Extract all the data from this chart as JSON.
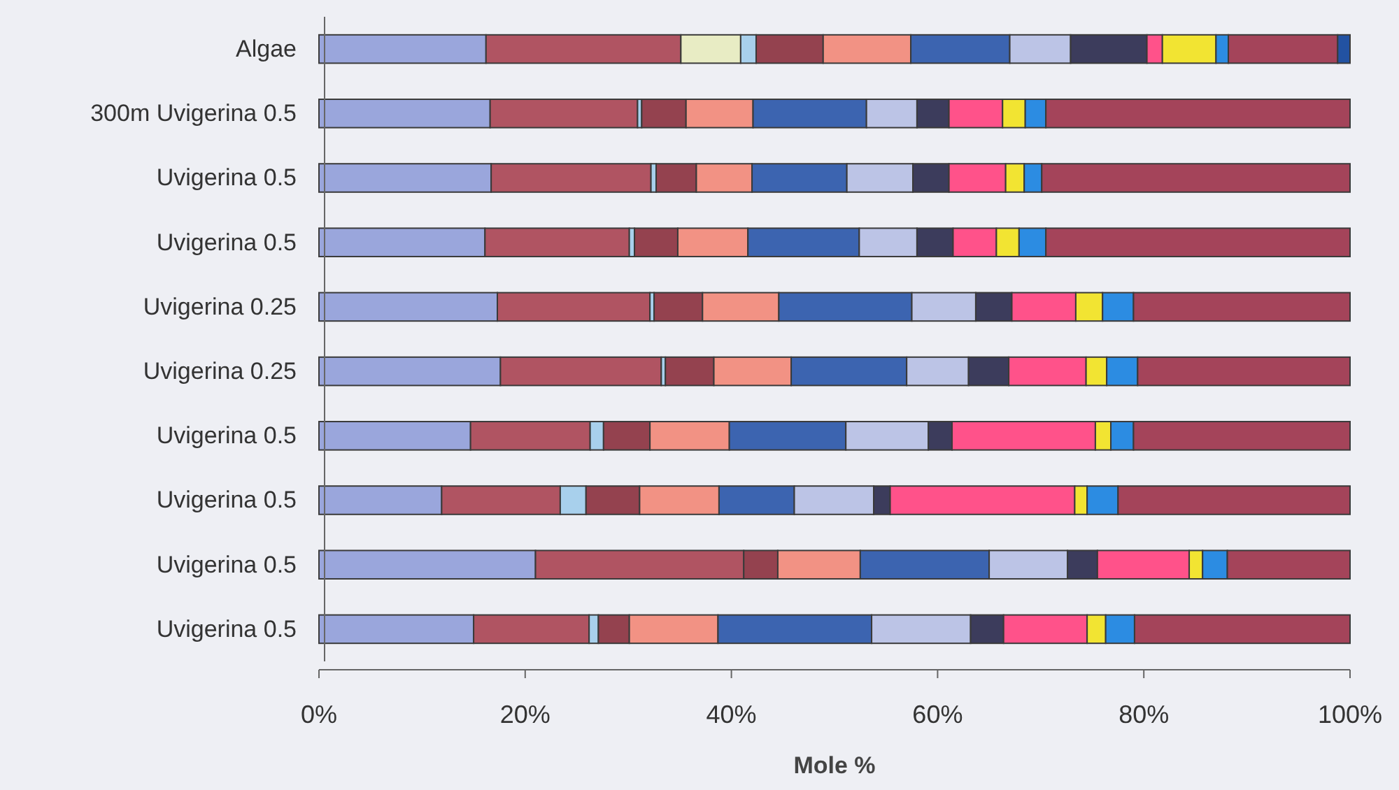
{
  "chart_data": {
    "type": "bar",
    "orientation": "horizontal",
    "stacked": true,
    "xlabel": "Mole %",
    "categories": [
      "Algae",
      "300m Uvigerina 0.5",
      "Uvigerina 0.5",
      "Uvigerina 0.5",
      "Uvigerina 0.25",
      "Uvigerina 0.25",
      "Uvigerina 0.5",
      "Uvigerina 0.5",
      "Uvigerina 0.5",
      "Uvigerina 0.5"
    ],
    "xlim": [
      0,
      100
    ],
    "xticks": [
      {
        "value": 0,
        "label": "0%"
      },
      {
        "value": 20,
        "label": "20%"
      },
      {
        "value": 40,
        "label": "40%"
      },
      {
        "value": 60,
        "label": "60%"
      },
      {
        "value": 80,
        "label": "80%"
      },
      {
        "value": 100,
        "label": "100%"
      }
    ],
    "series": [
      {
        "color": "#9aa6dc",
        "values": [
          16.2,
          16.6,
          16.7,
          16.1,
          17.3,
          17.6,
          14.7,
          11.9,
          21.0,
          15.0
        ]
      },
      {
        "color": "#b05462",
        "values": [
          18.9,
          14.3,
          15.5,
          14.0,
          14.8,
          15.6,
          11.6,
          11.5,
          20.2,
          11.2
        ]
      },
      {
        "color": "#e8ecc4",
        "values": [
          5.8,
          0,
          0,
          0,
          0,
          0,
          0,
          0,
          0,
          0
        ]
      },
      {
        "color": "#a8d0ec",
        "values": [
          1.5,
          0.4,
          0.5,
          0.5,
          0.4,
          0.4,
          1.3,
          2.5,
          0,
          0.9
        ]
      },
      {
        "color": "#94424f",
        "values": [
          6.5,
          4.3,
          3.9,
          4.2,
          4.7,
          4.7,
          4.5,
          5.2,
          3.3,
          3.0
        ]
      },
      {
        "color": "#f29284",
        "values": [
          8.5,
          6.5,
          5.4,
          6.8,
          7.4,
          7.5,
          7.7,
          7.7,
          8.0,
          8.6
        ]
      },
      {
        "color": "#3c64b0",
        "values": [
          9.6,
          11.0,
          9.2,
          10.8,
          12.9,
          11.2,
          11.3,
          7.3,
          12.5,
          14.9
        ]
      },
      {
        "color": "#bcc4e6",
        "values": [
          5.9,
          4.9,
          6.4,
          5.6,
          6.2,
          6.0,
          8.0,
          7.7,
          7.6,
          9.6
        ]
      },
      {
        "color": "#3c3c5c",
        "values": [
          7.4,
          3.1,
          3.5,
          3.5,
          3.5,
          3.9,
          2.3,
          1.6,
          2.9,
          3.2
        ]
      },
      {
        "color": "#ff528a",
        "values": [
          1.5,
          5.2,
          5.5,
          4.2,
          6.2,
          7.5,
          13.9,
          17.9,
          8.9,
          8.1
        ]
      },
      {
        "color": "#f2e432",
        "values": [
          5.2,
          2.2,
          1.8,
          2.2,
          2.6,
          2.0,
          1.5,
          1.2,
          1.3,
          1.8
        ]
      },
      {
        "color": "#2c8ce2",
        "values": [
          1.2,
          2.0,
          1.7,
          2.6,
          3.0,
          3.0,
          2.2,
          3.0,
          2.4,
          2.8
        ]
      },
      {
        "color": "#a4445a",
        "values": [
          10.6,
          29.5,
          29.9,
          29.5,
          21.0,
          20.6,
          21.0,
          22.5,
          11.9,
          20.9
        ]
      },
      {
        "color": "#2252a2",
        "values": [
          1.2,
          0,
          0,
          0,
          0,
          0,
          0,
          0,
          0,
          0
        ]
      }
    ]
  }
}
